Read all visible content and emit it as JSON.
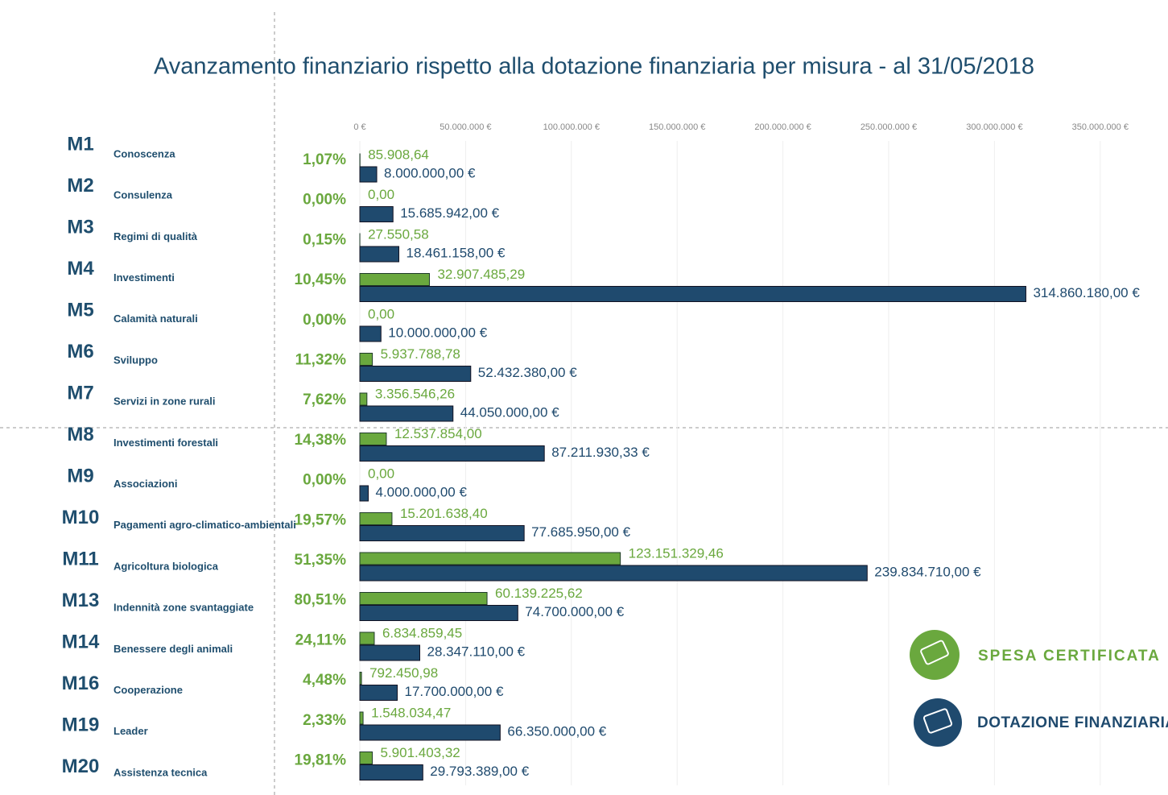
{
  "chart_data": {
    "type": "barh",
    "title": "Avanzamento finanziario rispetto alla dotazione finanziaria per misura - al 31/05/2018",
    "categories": [
      "M1",
      "M2",
      "M3",
      "M4",
      "M5",
      "M6",
      "M7",
      "M8",
      "M9",
      "M10",
      "M11",
      "M13",
      "M14",
      "M16",
      "M19",
      "M20"
    ],
    "descriptions": [
      "Conoscenza",
      "Consulenza",
      "Regimi di qualità",
      "Investimenti",
      "Calamità naturali",
      "Sviluppo",
      "Servizi in zone rurali",
      "Investimenti forestali",
      "Associazioni",
      "Pagamenti agro-climatico-ambientali",
      "Agricoltura biologica",
      "Indennità zone svantaggiate",
      "Benessere degli animali",
      "Cooperazione",
      "Leader",
      "Assistenza tecnica"
    ],
    "shares": [
      "1,07%",
      "0,00%",
      "0,15%",
      "10,45%",
      "0,00%",
      "11,32%",
      "7,62%",
      "14,38%",
      "0,00%",
      "19,57%",
      "51,35%",
      "80,51%",
      "24,11%",
      "4,48%",
      "2,33%",
      "19,81%"
    ],
    "series": [
      {
        "name": "SPESA CERTIFICATA",
        "color": "#6aa83e",
        "values": [
          85908.64,
          0,
          27550.58,
          32907485.29,
          0,
          5937788.78,
          3356546.26,
          12537854,
          0,
          15201638.4,
          123151329.46,
          60139225.62,
          6834859.45,
          792450.98,
          1548034.47,
          5901403.32
        ],
        "value_labels": [
          "85.908,64",
          "0,00",
          "27.550,58",
          "32.907.485,29",
          "0,00",
          "5.937.788,78",
          "3.356.546,26",
          "12.537.854,00",
          "0,00",
          "15.201.638,40",
          "123.151.329,46",
          "60.139.225,62",
          "6.834.859,45",
          "792.450,98",
          "1.548.034,47",
          "5.901.403,32"
        ]
      },
      {
        "name": "DOTAZIONE FINANZIARIA",
        "color": "#1f4a6e",
        "values": [
          8000000,
          15685942,
          18461158,
          314860180,
          10000000,
          52432380,
          44050000,
          87211930.33,
          4000000,
          77685950,
          239834710,
          74700000,
          28347110,
          17700000,
          66350000,
          29793389
        ],
        "value_labels": [
          "8.000.000,00 €",
          "15.685.942,00 €",
          "18.461.158,00 €",
          "314.860.180,00 €",
          "10.000.000,00 €",
          "52.432.380,00 €",
          "44.050.000,00 €",
          "87.211.930,33 €",
          "4.000.000,00 €",
          "77.685.950,00 €",
          "239.834.710,00 €",
          "74.700.000,00 €",
          "28.347.110,00 €",
          "17.700.000,00 €",
          "66.350.000,00 €",
          "29.793.389,00 €"
        ]
      }
    ],
    "xlim": [
      0,
      380000000
    ],
    "xticks": [
      {
        "value": 0,
        "label": "0 €"
      },
      {
        "value": 50000000,
        "label": "50.000.000 €"
      },
      {
        "value": 100000000,
        "label": "100.000.000 €"
      },
      {
        "value": 150000000,
        "label": "150.000.000 €"
      },
      {
        "value": 200000000,
        "label": "200.000.000 €"
      },
      {
        "value": 250000000,
        "label": "250.000.000 €"
      },
      {
        "value": 300000000,
        "label": "300.000.000 €"
      },
      {
        "value": 350000000,
        "label": "350.000.000 €"
      }
    ],
    "grid": true
  }
}
